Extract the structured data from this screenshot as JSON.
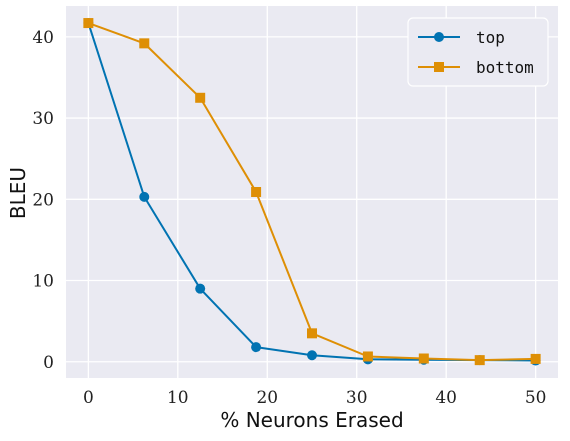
{
  "chart_data": {
    "type": "line",
    "xlabel": "% Neurons Erased",
    "ylabel": "BLEU",
    "xlim": [
      -2.5,
      52.5
    ],
    "ylim": [
      -2,
      43.8
    ],
    "xticks": [
      0,
      10,
      20,
      30,
      40,
      50
    ],
    "yticks": [
      0,
      10,
      20,
      30,
      40
    ],
    "xtick_labels": [
      "0",
      "10",
      "20",
      "30",
      "40",
      "50"
    ],
    "ytick_labels": [
      "0",
      "10",
      "20",
      "30",
      "40"
    ],
    "grid": true,
    "legend_position": "top-right",
    "background": "#eaeaf2",
    "series": [
      {
        "name": "top",
        "color": "#0173b2",
        "marker": "circle",
        "x": [
          0,
          6.25,
          12.5,
          18.75,
          25,
          31.25,
          37.5,
          43.75,
          50
        ],
        "y": [
          41.7,
          20.3,
          9.0,
          1.8,
          0.8,
          0.3,
          0.25,
          0.2,
          0.15
        ]
      },
      {
        "name": "bottom",
        "color": "#de8f05",
        "marker": "square",
        "x": [
          0,
          6.25,
          12.5,
          18.75,
          25,
          31.25,
          37.5,
          43.75,
          50
        ],
        "y": [
          41.7,
          39.2,
          32.5,
          20.9,
          3.5,
          0.65,
          0.4,
          0.2,
          0.35
        ]
      }
    ]
  }
}
